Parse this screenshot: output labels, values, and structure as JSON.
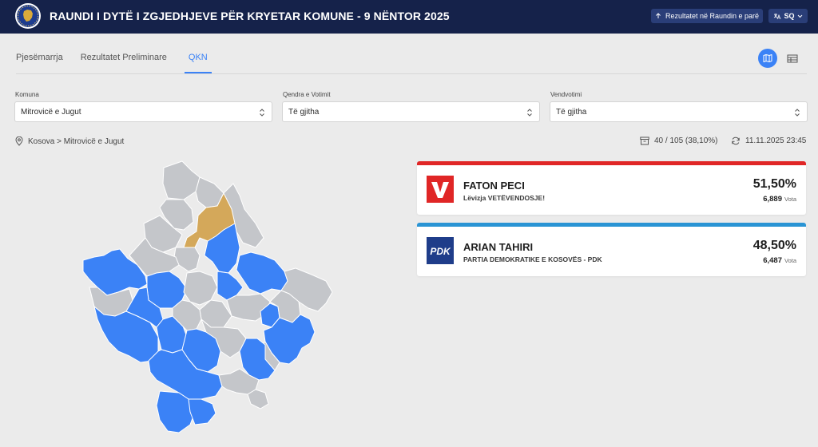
{
  "header": {
    "title": "RAUNDI I DYTË I ZGJEDHJEVE PËR KRYETAR KOMUNE - 9 NËNTOR 2025",
    "first_round_button": "Rezultatet në Raundin e parë",
    "language": "SQ"
  },
  "tabs": [
    {
      "label": "Pjesëmarrja",
      "active": false
    },
    {
      "label": "Rezultatet Preliminare",
      "active": false
    },
    {
      "label": "QKN",
      "active": true
    }
  ],
  "view_toggle": {
    "map_icon": "map-icon",
    "table_icon": "table-icon",
    "active": "map"
  },
  "filters": [
    {
      "label": "Komuna",
      "value": "Mitrovicë e Jugut"
    },
    {
      "label": "Qendra e Votimit",
      "value": "Të gjitha"
    },
    {
      "label": "Vendvotimi",
      "value": "Të gjitha"
    }
  ],
  "breadcrumb": "Kosova > Mitrovicë e Jugut",
  "status": {
    "counted": "40 / 105 (38,10%)",
    "updated": "11.11.2025 23:45"
  },
  "candidates": [
    {
      "name": "FATON PECI",
      "party": "Lëvizja VETËVENDOSJE!",
      "percent": "51,50%",
      "votes": "6,889",
      "votes_unit": "Vota",
      "color": "#e02626",
      "logo_text": "V"
    },
    {
      "name": "ARIAN TAHIRI",
      "party": "PARTIA DEMOKRATIKE E KOSOVËS - PDK",
      "percent": "48,50%",
      "votes": "6,487",
      "votes_unit": "Vota",
      "color": "#2a94d4",
      "logo_text": "PDK"
    }
  ],
  "map_colors": {
    "vv": "#3b82f6",
    "selected": "#d4a85a",
    "none": "#c4c6ca"
  }
}
